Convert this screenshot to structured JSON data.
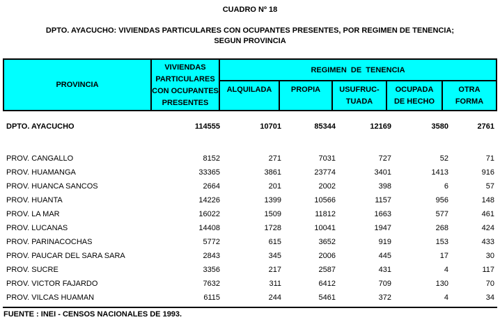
{
  "title": "CUADRO Nº 18",
  "subtitle": {
    "line1": "DPTO. AYACUCHO: VIVIENDAS PARTICULARES CON OCUPANTES PRESENTES, POR REGIMEN DE TENENCIA;",
    "line2": "SEGUN PROVINCIA"
  },
  "colors": {
    "header_bg": "#00FFFF",
    "border": "#000000"
  },
  "table": {
    "header": {
      "provincia": "PROVINCIA",
      "viviendas_lines": [
        "VIVIENDAS",
        "PARTICULARES",
        "CON OCUPANTES",
        "PRESENTES"
      ],
      "regimen": "REGIMEN  DE  TENENCIA",
      "subheaders": [
        {
          "line1": "ALQUILADA",
          "line2": ""
        },
        {
          "line1": "PROPIA",
          "line2": ""
        },
        {
          "line1": "USUFRUC-",
          "line2": "TUADA"
        },
        {
          "line1": "OCUPADA",
          "line2": "DE HECHO"
        },
        {
          "line1": "OTRA",
          "line2": "FORMA"
        }
      ]
    },
    "total_row": {
      "name": "DPTO. AYACUCHO",
      "values": [
        114555,
        10701,
        85344,
        12169,
        3580,
        2761
      ]
    },
    "rows": [
      {
        "name": "PROV. CANGALLO",
        "values": [
          8152,
          271,
          7031,
          727,
          52,
          71
        ]
      },
      {
        "name": "PROV. HUAMANGA",
        "values": [
          33365,
          3861,
          23774,
          3401,
          1413,
          916
        ]
      },
      {
        "name": "PROV. HUANCA SANCOS",
        "values": [
          2664,
          201,
          2002,
          398,
          6,
          57
        ]
      },
      {
        "name": "PROV. HUANTA",
        "values": [
          14226,
          1399,
          10566,
          1157,
          956,
          148
        ]
      },
      {
        "name": "PROV. LA MAR",
        "values": [
          16022,
          1509,
          11812,
          1663,
          577,
          461
        ]
      },
      {
        "name": "PROV. LUCANAS",
        "values": [
          14408,
          1728,
          10041,
          1947,
          268,
          424
        ]
      },
      {
        "name": "PROV. PARINACOCHAS",
        "values": [
          5772,
          615,
          3652,
          919,
          153,
          433
        ]
      },
      {
        "name": "PROV. PAUCAR DEL SARA SARA",
        "values": [
          2843,
          345,
          2006,
          445,
          17,
          30
        ]
      },
      {
        "name": "PROV. SUCRE",
        "values": [
          3356,
          217,
          2587,
          431,
          4,
          117
        ]
      },
      {
        "name": "PROV. VICTOR FAJARDO",
        "values": [
          7632,
          311,
          6412,
          709,
          130,
          70
        ]
      },
      {
        "name": "PROV. VILCAS HUAMAN",
        "values": [
          6115,
          244,
          5461,
          372,
          4,
          34
        ]
      }
    ],
    "source": "FUENTE : INEI - CENSOS NACIONALES DE 1993."
  }
}
